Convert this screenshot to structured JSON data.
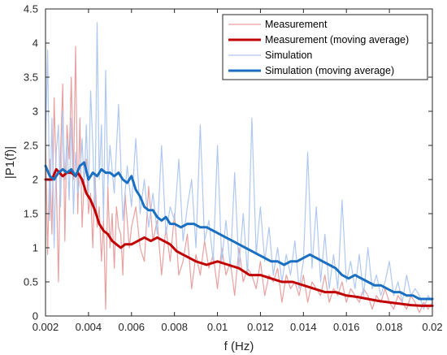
{
  "chart_data": {
    "type": "line",
    "xlabel": "f (Hz)",
    "ylabel": "|P1(f)|",
    "xlim": [
      0.002,
      0.02
    ],
    "ylim": [
      0,
      4.5
    ],
    "xticks": [
      "0.002",
      "0.004",
      "0.006",
      "0.008",
      "0.01",
      "0.012",
      "0.014",
      "0.016",
      "0.018",
      "0.02"
    ],
    "yticks": [
      "0",
      "0.5",
      "1",
      "1.5",
      "2",
      "2.5",
      "3",
      "3.5",
      "4",
      "4.5"
    ],
    "grid": false,
    "legend_position": "top-right",
    "series": [
      {
        "name": "Measurement",
        "color": "#e8a0a0",
        "style": "thin",
        "x": [
          0.002,
          0.0021,
          0.0022,
          0.0023,
          0.0024,
          0.0025,
          0.0026,
          0.0027,
          0.0028,
          0.0029,
          0.003,
          0.0031,
          0.0032,
          0.0033,
          0.0034,
          0.0035,
          0.0036,
          0.0037,
          0.0038,
          0.0039,
          0.004,
          0.0041,
          0.0042,
          0.0043,
          0.0044,
          0.0045,
          0.0046,
          0.0047,
          0.0048,
          0.0049,
          0.005,
          0.0051,
          0.0052,
          0.0053,
          0.0054,
          0.0055,
          0.0056,
          0.0057,
          0.0058,
          0.0059,
          0.006,
          0.0062,
          0.0064,
          0.0066,
          0.0068,
          0.007,
          0.0072,
          0.0074,
          0.0076,
          0.0078,
          0.008,
          0.0082,
          0.0084,
          0.0086,
          0.0088,
          0.009,
          0.0092,
          0.0094,
          0.0096,
          0.0098,
          0.01,
          0.0102,
          0.0104,
          0.0106,
          0.0108,
          0.011,
          0.0112,
          0.0114,
          0.0116,
          0.0118,
          0.012,
          0.0122,
          0.0124,
          0.0126,
          0.0128,
          0.013,
          0.0132,
          0.0134,
          0.0136,
          0.0138,
          0.014,
          0.0142,
          0.0144,
          0.0146,
          0.0148,
          0.015,
          0.0152,
          0.0154,
          0.0156,
          0.0158,
          0.016,
          0.0162,
          0.0164,
          0.0166,
          0.0168,
          0.017,
          0.0172,
          0.0174,
          0.0176,
          0.0178,
          0.018,
          0.0182,
          0.0184,
          0.0186,
          0.0188,
          0.019,
          0.0192,
          0.0194,
          0.0196,
          0.0198,
          0.02
        ],
        "values": [
          2.6,
          0.9,
          2.3,
          1.2,
          3.2,
          2.0,
          0.5,
          2.4,
          3.4,
          1.1,
          2.8,
          2.3,
          3.5,
          2.0,
          3.95,
          1.5,
          2.9,
          1.3,
          2.0,
          2.3,
          1.5,
          1.8,
          1.0,
          2.1,
          1.3,
          1.6,
          0.8,
          1.4,
          0.1,
          1.9,
          1.0,
          1.5,
          0.7,
          1.6,
          1.3,
          1.2,
          0.6,
          1.8,
          1.4,
          1.0,
          1.3,
          1.6,
          1.0,
          0.8,
          1.9,
          1.1,
          1.4,
          0.6,
          1.3,
          0.8,
          1.5,
          0.6,
          0.8,
          1.2,
          0.4,
          0.9,
          0.6,
          1.1,
          0.7,
          0.9,
          0.4,
          1.0,
          0.6,
          0.8,
          0.3,
          1.0,
          0.5,
          0.7,
          0.6,
          0.4,
          0.8,
          0.3,
          0.6,
          0.5,
          0.7,
          0.2,
          0.6,
          0.4,
          0.5,
          0.3,
          0.6,
          0.2,
          0.5,
          0.4,
          0.3,
          0.6,
          0.2,
          0.4,
          0.3,
          0.5,
          0.2,
          0.4,
          0.3,
          0.2,
          0.4,
          0.3,
          0.1,
          0.3,
          0.2,
          0.4,
          0.2,
          0.1,
          0.3,
          0.2,
          0.1,
          0.3,
          0.2,
          0.05,
          0.2,
          0.1,
          0.2
        ]
      },
      {
        "name": "Measurement (moving average)",
        "color": "#c00000",
        "style": "thick",
        "x": [
          0.002,
          0.0023,
          0.0025,
          0.0028,
          0.003,
          0.0032,
          0.0034,
          0.0035,
          0.0037,
          0.0039,
          0.0041,
          0.0043,
          0.0045,
          0.0047,
          0.0049,
          0.0051,
          0.0053,
          0.0055,
          0.0057,
          0.006,
          0.0063,
          0.0066,
          0.0069,
          0.0072,
          0.0075,
          0.0078,
          0.0081,
          0.0084,
          0.0087,
          0.009,
          0.0095,
          0.01,
          0.0105,
          0.011,
          0.0115,
          0.012,
          0.0125,
          0.013,
          0.0135,
          0.014,
          0.0145,
          0.015,
          0.0155,
          0.016,
          0.0165,
          0.017,
          0.0175,
          0.018,
          0.0185,
          0.019,
          0.0195,
          0.02
        ],
        "values": [
          2.0,
          2.0,
          2.15,
          2.05,
          2.1,
          2.1,
          2.05,
          2.1,
          2.0,
          1.8,
          1.7,
          1.55,
          1.35,
          1.25,
          1.2,
          1.1,
          1.05,
          1.0,
          1.05,
          1.05,
          1.1,
          1.15,
          1.1,
          1.15,
          1.1,
          1.05,
          0.95,
          0.9,
          0.85,
          0.8,
          0.75,
          0.8,
          0.75,
          0.7,
          0.6,
          0.6,
          0.55,
          0.5,
          0.5,
          0.45,
          0.4,
          0.35,
          0.35,
          0.3,
          0.28,
          0.25,
          0.22,
          0.2,
          0.18,
          0.16,
          0.15,
          0.15
        ]
      },
      {
        "name": "Simulation",
        "color": "#b0c8f0",
        "style": "thin",
        "x": [
          0.002,
          0.0021,
          0.0022,
          0.0023,
          0.0024,
          0.0025,
          0.0026,
          0.0027,
          0.0028,
          0.0029,
          0.003,
          0.0031,
          0.0032,
          0.0033,
          0.0034,
          0.0035,
          0.0036,
          0.0037,
          0.0038,
          0.0039,
          0.004,
          0.0041,
          0.0042,
          0.0043,
          0.0044,
          0.0045,
          0.0046,
          0.0047,
          0.0048,
          0.0049,
          0.005,
          0.0052,
          0.0054,
          0.0056,
          0.0058,
          0.006,
          0.0062,
          0.0064,
          0.0066,
          0.0068,
          0.007,
          0.0072,
          0.0074,
          0.0076,
          0.0078,
          0.008,
          0.0082,
          0.0084,
          0.0086,
          0.0088,
          0.009,
          0.0092,
          0.0094,
          0.0096,
          0.0098,
          0.01,
          0.0102,
          0.0104,
          0.0106,
          0.0108,
          0.011,
          0.0112,
          0.0114,
          0.0116,
          0.0118,
          0.012,
          0.0122,
          0.0124,
          0.0126,
          0.0128,
          0.013,
          0.0132,
          0.0134,
          0.0136,
          0.0138,
          0.014,
          0.0142,
          0.0144,
          0.0146,
          0.0148,
          0.015,
          0.0152,
          0.0154,
          0.0156,
          0.0158,
          0.016,
          0.0162,
          0.0164,
          0.0166,
          0.0168,
          0.017,
          0.0172,
          0.0174,
          0.0176,
          0.0178,
          0.018,
          0.0182,
          0.0184,
          0.0186,
          0.0188,
          0.019,
          0.0192,
          0.0194,
          0.0196,
          0.0198,
          0.02
        ],
        "values": [
          2.5,
          3.9,
          1.4,
          2.9,
          1.0,
          2.4,
          2.8,
          1.6,
          3.0,
          2.0,
          2.6,
          1.7,
          2.9,
          1.5,
          2.4,
          1.8,
          2.0,
          2.6,
          1.9,
          2.8,
          1.8,
          3.3,
          2.5,
          1.5,
          4.3,
          2.0,
          2.8,
          1.4,
          3.6,
          1.9,
          2.5,
          1.8,
          3.1,
          1.4,
          2.2,
          1.6,
          2.6,
          1.5,
          2.0,
          1.3,
          1.8,
          1.2,
          2.5,
          1.2,
          1.6,
          1.4,
          2.3,
          1.1,
          1.6,
          2.0,
          1.0,
          2.8,
          1.1,
          1.4,
          0.8,
          2.5,
          0.8,
          1.4,
          0.7,
          2.1,
          0.7,
          1.5,
          0.6,
          2.9,
          0.9,
          1.6,
          0.8,
          1.3,
          0.6,
          1.0,
          0.5,
          0.9,
          0.6,
          1.1,
          0.4,
          0.8,
          2.4,
          0.7,
          1.6,
          0.5,
          1.2,
          0.4,
          0.9,
          0.4,
          1.7,
          0.5,
          0.8,
          0.4,
          0.9,
          0.3,
          1.0,
          0.4,
          0.6,
          0.3,
          0.5,
          0.8,
          0.3,
          0.5,
          0.2,
          0.6,
          0.3,
          0.4,
          0.3,
          0.1,
          0.3,
          0.2
        ]
      },
      {
        "name": "Simulation (moving average)",
        "color": "#1a6fc0",
        "style": "thick",
        "x": [
          0.002,
          0.0022,
          0.0024,
          0.0026,
          0.0028,
          0.003,
          0.0032,
          0.0034,
          0.0036,
          0.0038,
          0.004,
          0.0042,
          0.0044,
          0.0046,
          0.0048,
          0.005,
          0.0052,
          0.0054,
          0.0056,
          0.0058,
          0.006,
          0.0062,
          0.0064,
          0.0066,
          0.0068,
          0.007,
          0.0072,
          0.0074,
          0.0076,
          0.0078,
          0.008,
          0.0083,
          0.0086,
          0.0089,
          0.0092,
          0.0095,
          0.0098,
          0.0101,
          0.0104,
          0.0107,
          0.011,
          0.0113,
          0.0116,
          0.0119,
          0.0122,
          0.0125,
          0.0128,
          0.0131,
          0.0134,
          0.0137,
          0.014,
          0.0143,
          0.0146,
          0.0149,
          0.0152,
          0.0155,
          0.0158,
          0.0161,
          0.0164,
          0.0167,
          0.017,
          0.0173,
          0.0176,
          0.0179,
          0.0182,
          0.0185,
          0.0188,
          0.0191,
          0.0194,
          0.0197,
          0.02
        ],
        "values": [
          2.2,
          2.05,
          2.0,
          2.1,
          2.15,
          2.1,
          2.15,
          2.05,
          2.2,
          2.25,
          2.0,
          2.1,
          2.05,
          2.15,
          2.1,
          2.1,
          2.05,
          2.1,
          2.0,
          1.95,
          2.05,
          1.85,
          1.75,
          1.6,
          1.55,
          1.55,
          1.45,
          1.4,
          1.45,
          1.35,
          1.35,
          1.3,
          1.35,
          1.35,
          1.3,
          1.3,
          1.25,
          1.2,
          1.15,
          1.1,
          1.05,
          1.0,
          0.95,
          0.9,
          0.85,
          0.8,
          0.8,
          0.75,
          0.8,
          0.8,
          0.85,
          0.9,
          0.85,
          0.8,
          0.75,
          0.7,
          0.6,
          0.55,
          0.6,
          0.55,
          0.5,
          0.45,
          0.45,
          0.4,
          0.35,
          0.35,
          0.3,
          0.3,
          0.25,
          0.25,
          0.25
        ]
      }
    ]
  }
}
